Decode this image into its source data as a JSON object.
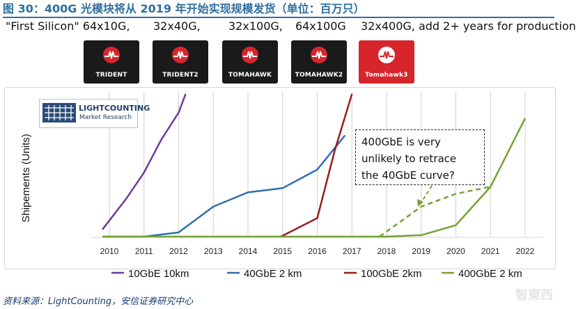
{
  "figure_title": "图 30：400G 光模块将从 2019 年开始实现规模发货（单位：百万只）",
  "chips": {
    "label_first": "\"First Silicon\" 64x10G,",
    "label_2": "32x40G,",
    "label_3": "32x100G,",
    "label_4": "64x100G",
    "label_5": "32x400G, add 2+ years for production",
    "names": [
      "TRIDENT",
      "TRIDENT2",
      "TOMAHAWK",
      "TOMAHAWK2",
      "Tomahawk3"
    ],
    "colors": {
      "dark": "#1a1a1a",
      "last": "#d6262c",
      "logo": "#d6262c"
    }
  },
  "logo": {
    "name": "LIGHTCOUNTING",
    "sub": "Market Research"
  },
  "callout": {
    "line1": "400GbE is very",
    "line2": "unlikely to retrace",
    "line3": "the 40GbE curve?"
  },
  "source": "资料来源：LightCounting，安信证券研究中心",
  "watermark": "智東西",
  "chart_data": {
    "type": "line",
    "title": "",
    "xlabel": "",
    "ylabel": "Shipements (Units)",
    "categories": [
      "2010",
      "2011",
      "2012",
      "2013",
      "2014",
      "2015",
      "2016",
      "2017",
      "2018",
      "2019",
      "2020",
      "2021",
      "2022"
    ],
    "x_range": [
      2010,
      2022
    ],
    "y_range": [
      0,
      100
    ],
    "grid": true,
    "legend_position": "bottom",
    "series": [
      {
        "name": "10GbE 10km",
        "color": "#6a3d9a",
        "dashed": false,
        "points": [
          [
            2009.8,
            5
          ],
          [
            2010.5,
            27
          ],
          [
            2011,
            45
          ],
          [
            2011.5,
            68
          ],
          [
            2012,
            87
          ],
          [
            2012.2,
            100
          ]
        ]
      },
      {
        "name": "40GbE 2 km",
        "color": "#2f6db0",
        "dashed": false,
        "points": [
          [
            2009.8,
            0
          ],
          [
            2011,
            0
          ],
          [
            2012,
            3
          ],
          [
            2013,
            21
          ],
          [
            2014,
            31
          ],
          [
            2015,
            34
          ],
          [
            2016,
            47
          ],
          [
            2016.8,
            71
          ]
        ]
      },
      {
        "name": "100GbE 2km",
        "color": "#9b1b1e",
        "dashed": false,
        "points": [
          [
            2014.95,
            0
          ],
          [
            2016,
            13
          ],
          [
            2016.5,
            60
          ],
          [
            2017,
            100
          ]
        ]
      },
      {
        "name": "400GbE 2 km",
        "color": "#72a232",
        "dashed": false,
        "points": [
          [
            2009.8,
            0
          ],
          [
            2018,
            0
          ],
          [
            2019,
            1
          ],
          [
            2020,
            8
          ],
          [
            2021,
            35
          ],
          [
            2022,
            83
          ]
        ]
      },
      {
        "name": "400GbE projection (40GbE-like)",
        "color": "#72a232",
        "dashed": true,
        "in_legend": false,
        "points": [
          [
            2017.8,
            0
          ],
          [
            2019,
            21
          ],
          [
            2020,
            30
          ],
          [
            2021,
            35
          ]
        ]
      }
    ]
  }
}
